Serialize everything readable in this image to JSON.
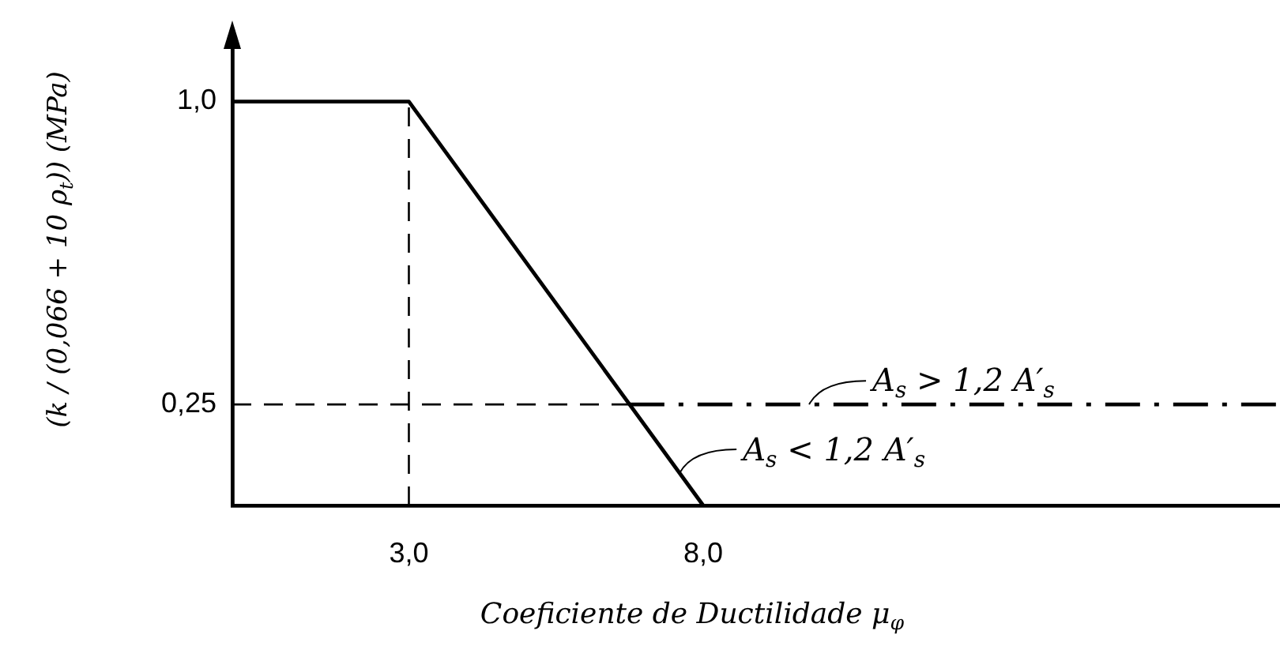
{
  "chart_data": {
    "type": "line",
    "xlabel": "Coeficiente de Ductilidade μ$_{φ}$",
    "ylabel": "(k / (0,066 + 10 ρ$_{t}$)) (MPa)",
    "series": [
      {
        "color": "#000000",
        "x": [
          0,
          3,
          8
        ],
        "values": [
          1,
          1,
          0
        ],
        "line_style": "solid"
      },
      {
        "color": "#000000",
        "x": [
          6.75,
          17.8
        ],
        "values": [
          0.25,
          0.25
        ],
        "line_style": "dashdot"
      }
    ],
    "xlim": [
      0,
      17.8
    ],
    "ylim": [
      0,
      1.17
    ],
    "xticks": [
      {
        "value": 3,
        "label": "3,0"
      },
      {
        "value": 8,
        "label": "8,0"
      }
    ],
    "yticks": [
      {
        "value": 0.25,
        "label": "0,25"
      },
      {
        "value": 1,
        "label": "1,0"
      }
    ],
    "ref_lines": [
      {
        "axis": "x",
        "value": 3,
        "line_style": "dashed",
        "color": "#000000"
      },
      {
        "axis": "y",
        "value": 0.25,
        "line_style": "dashed",
        "color": "#000000"
      }
    ],
    "annotations": [
      {
        "text": "A$_{s}$ > 1,2 A′$_{s}$",
        "x": 9.8,
        "y": 0.25
      },
      {
        "text": "A$_{s}$ < 1,2 A′$_{s}$",
        "x": 7.6,
        "y": 0.08
      }
    ],
    "marker": "none",
    "legend": false
  }
}
